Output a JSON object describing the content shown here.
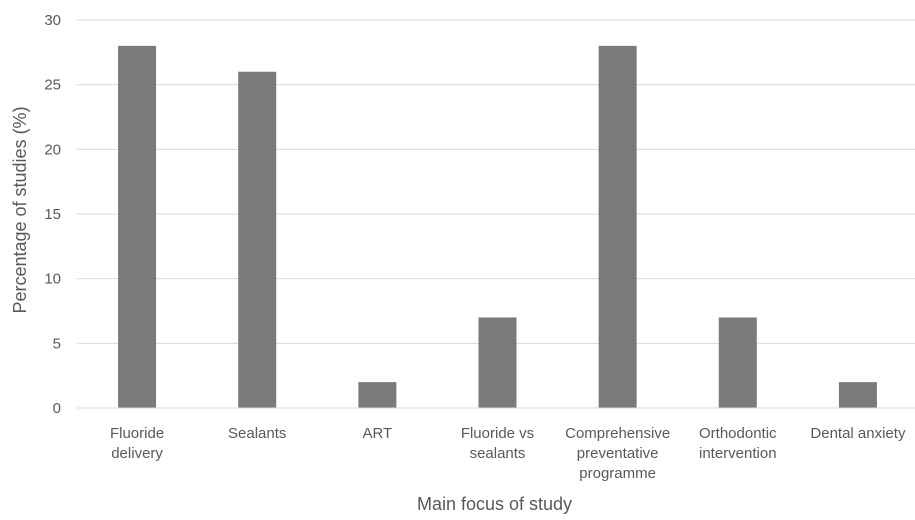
{
  "chart_data": {
    "type": "bar",
    "title": "",
    "xlabel": "Main focus of study",
    "ylabel": "Percentage of studies (%)",
    "ylim": [
      0,
      30
    ],
    "yticks": [
      0,
      5,
      10,
      15,
      20,
      25,
      30
    ],
    "grid": true,
    "legend": "none",
    "categories": [
      [
        "Fluoride",
        "delivery"
      ],
      [
        "Sealants"
      ],
      [
        "ART"
      ],
      [
        "Fluoride vs",
        "sealants"
      ],
      [
        "Comprehensive",
        "preventative",
        "programme"
      ],
      [
        "Orthodontic",
        "intervention"
      ],
      [
        "Dental anxiety"
      ]
    ],
    "values": [
      28,
      26,
      2,
      7,
      28,
      7,
      2
    ],
    "bar_color": "#7a7a7a"
  }
}
